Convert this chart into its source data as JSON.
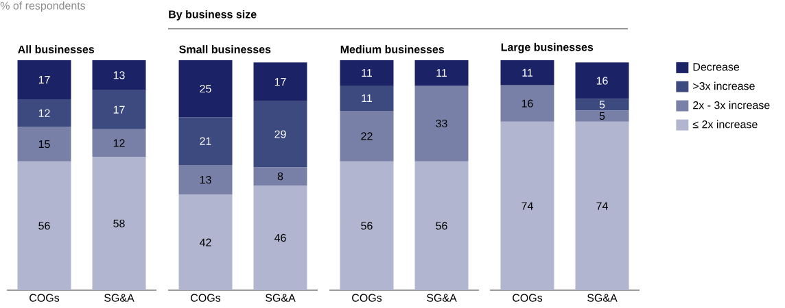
{
  "chart_data": [
    {
      "type": "bar",
      "title": "All businesses",
      "ylabel": "% of respondents",
      "categories": [
        "COGs",
        "SG&A"
      ],
      "stacked": true,
      "ylim": [
        0,
        100
      ],
      "tick_labels": "x",
      "data_labels": true,
      "series": [
        {
          "color": "#b1b5cf",
          "values": [
            56,
            58
          ]
        },
        {
          "color": "#7880a8",
          "values": [
            15,
            12
          ]
        },
        {
          "color": "#3d4a80",
          "values": [
            12,
            17
          ]
        },
        {
          "color": "#1b2266",
          "values": [
            17,
            13
          ]
        }
      ]
    },
    {
      "type": "bar",
      "title": "Small businesses",
      "annotations": [
        "By business size"
      ],
      "categories": [
        "COGs",
        "SG&A"
      ],
      "stacked": true,
      "ylim": [
        0,
        101
      ],
      "tick_labels": "x",
      "data_labels": true,
      "series": [
        {
          "color": "#b1b5cf",
          "values": [
            42,
            46
          ]
        },
        {
          "color": "#7880a8",
          "values": [
            13,
            8
          ]
        },
        {
          "color": "#3d4a80",
          "values": [
            21,
            29
          ]
        },
        {
          "color": "#1b2266",
          "values": [
            25,
            17
          ]
        }
      ]
    },
    {
      "type": "bar",
      "title": "Medium businesses",
      "categories": [
        "COGs",
        "SG&A"
      ],
      "stacked": true,
      "ylim": [
        0,
        100
      ],
      "tick_labels": "x",
      "data_labels": true,
      "series": [
        {
          "color": "#b1b5cf",
          "values": [
            56,
            56
          ]
        },
        {
          "color": "#7880a8",
          "values": [
            22,
            33
          ]
        },
        {
          "color": "#3d4a80",
          "values": [
            11,
            null
          ]
        },
        {
          "color": "#1b2266",
          "values": [
            11,
            11
          ]
        }
      ]
    },
    {
      "type": "bar",
      "title": "Large businesses",
      "categories": [
        "COGs",
        "SG&A"
      ],
      "stacked": true,
      "ylim": [
        0,
        101
      ],
      "tick_labels": "x",
      "data_labels": true,
      "legend": "right",
      "series": [
        {
          "name": "≤ 2x increase",
          "color": "#b1b5cf",
          "values": [
            74,
            74
          ]
        },
        {
          "name": "2x - 3x increase",
          "color": "#7880a8",
          "values": [
            16,
            5
          ]
        },
        {
          "name": ">3x increase",
          "color": "#3d4a80",
          "values": [
            null,
            5
          ]
        },
        {
          "name": "Decrease",
          "color": "#1b2266",
          "values": [
            11,
            16
          ]
        }
      ]
    }
  ]
}
